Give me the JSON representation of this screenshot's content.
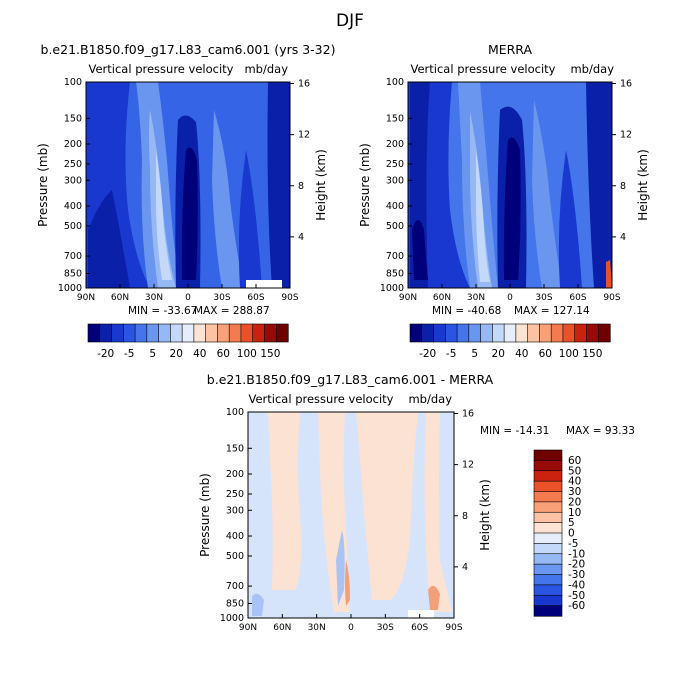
{
  "figure_title": "DJF",
  "colors": {
    "blues": [
      "#00007a",
      "#0a20a8",
      "#1838d0",
      "#2a55e2",
      "#4575ea",
      "#6a96f0",
      "#96b8f4",
      "#c4d8fa",
      "#e6eefc"
    ],
    "reds": [
      "#fde3d3",
      "#fbc3a3",
      "#f8a077",
      "#f47a4f",
      "#ea5128",
      "#c9230f",
      "#960a08",
      "#6e0000"
    ],
    "diff_pos": "#fbe2d2",
    "diff_neg": "#d6e4fb",
    "diff_neg_strong": "#a9c4f4",
    "diff_pos_strong": "#f2a07a"
  },
  "chart_data": [
    {
      "type": "heatmap",
      "panel": "model",
      "title": "b.e21.B1850.f09_g17.L83_cam6.001 (yrs 3-32)",
      "subtitle": "Vertical pressure velocity",
      "units": "mb/day",
      "xlabel": "",
      "ylabel": "Pressure (mb)",
      "y2label": "Height (km)",
      "xticks": [
        "90N",
        "60N",
        "30N",
        "0",
        "30S",
        "60S",
        "90S"
      ],
      "yticks": [
        100,
        150,
        200,
        250,
        300,
        400,
        500,
        700,
        850,
        1000
      ],
      "y2ticks": [
        16,
        12,
        8,
        4
      ],
      "ylim": [
        1000,
        100
      ],
      "y_scale": "log",
      "min_text": "MIN = -33.67",
      "max_text": "MAX = 288.87",
      "colorbar_labels": [
        "-20",
        "-5",
        "5",
        "20",
        "40",
        "60",
        "100",
        "150"
      ],
      "colorbar_position": "bottom"
    },
    {
      "type": "heatmap",
      "panel": "obs",
      "title": "MERRA",
      "subtitle": "Vertical pressure velocity",
      "units": "mb/day",
      "xlabel": "",
      "ylabel": "Pressure (mb)",
      "y2label": "Height (km)",
      "xticks": [
        "90N",
        "60N",
        "30N",
        "0",
        "30S",
        "60S",
        "90S"
      ],
      "yticks": [
        100,
        150,
        200,
        250,
        300,
        400,
        500,
        700,
        850,
        1000
      ],
      "y2ticks": [
        16,
        12,
        8,
        4
      ],
      "ylim": [
        1000,
        100
      ],
      "y_scale": "log",
      "min_text": "MIN = -40.68",
      "max_text": "MAX = 127.14",
      "colorbar_labels": [
        "-20",
        "-5",
        "5",
        "20",
        "40",
        "60",
        "100",
        "150"
      ],
      "colorbar_position": "bottom"
    },
    {
      "type": "heatmap",
      "panel": "difference",
      "title": "b.e21.B1850.f09_g17.L83_cam6.001 - MERRA",
      "subtitle": "Vertical pressure velocity",
      "units": "mb/day",
      "xlabel": "",
      "ylabel": "Pressure (mb)",
      "y2label": "Height (km)",
      "xticks": [
        "90N",
        "60N",
        "30N",
        "0",
        "30S",
        "60S",
        "90S"
      ],
      "yticks": [
        100,
        150,
        200,
        250,
        300,
        400,
        500,
        700,
        850,
        1000
      ],
      "y2ticks": [
        16,
        12,
        8,
        4
      ],
      "ylim": [
        1000,
        100
      ],
      "y_scale": "log",
      "min_text": "MIN = -14.31",
      "max_text": "MAX =  93.33",
      "colorbar_labels": [
        "60",
        "50",
        "40",
        "30",
        "20",
        "10",
        "5",
        "0",
        "-5",
        "-10",
        "-20",
        "-30",
        "-40",
        "-50",
        "-60"
      ],
      "colorbar_position": "right"
    }
  ]
}
